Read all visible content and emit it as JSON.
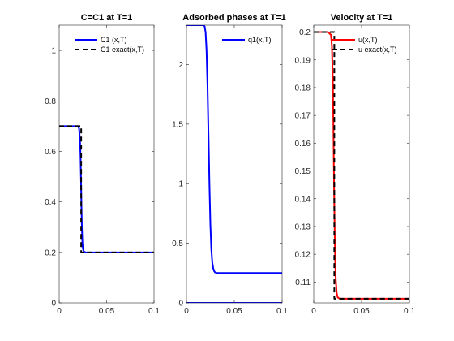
{
  "chart_data": [
    {
      "type": "line",
      "title": "C=C1 at T=1",
      "xlim": [
        0,
        0.1
      ],
      "ylim": [
        0,
        1.1
      ],
      "xticks": [
        0,
        0.05,
        0.1
      ],
      "xtick_labels": [
        "0",
        "0.05",
        "0.1"
      ],
      "yticks": [
        0,
        0.2,
        0.4,
        0.6,
        0.8,
        1
      ],
      "ytick_labels": [
        "0",
        "0.2",
        "0.4",
        "0.6",
        "0.8",
        "1"
      ],
      "grid": false,
      "legend_position": "top-right",
      "series": [
        {
          "name": "C1 (x,T)",
          "color": "#0000ff",
          "style": "solid",
          "x": [
            0,
            0.01,
            0.02,
            0.021,
            0.022,
            0.0225,
            0.023,
            0.0235,
            0.024,
            0.0245,
            0.025,
            0.026,
            0.028,
            0.03,
            0.05,
            0.1
          ],
          "y": [
            0.7,
            0.7,
            0.7,
            0.69,
            0.64,
            0.58,
            0.49,
            0.38,
            0.29,
            0.24,
            0.215,
            0.203,
            0.2,
            0.2,
            0.2,
            0.2
          ]
        },
        {
          "name": "C1 exact(x,T)",
          "color": "#000000",
          "style": "dashed",
          "x": [
            0,
            0.0232,
            0.0232,
            0.1
          ],
          "y": [
            0.7,
            0.7,
            0.2,
            0.2
          ]
        }
      ]
    },
    {
      "type": "line",
      "title": "Adsorbed phases at T=1",
      "xlim": [
        0,
        0.1
      ],
      "ylim": [
        0,
        2.33
      ],
      "xticks": [
        0,
        0.05,
        0.1
      ],
      "xtick_labels": [
        "0",
        "0.05",
        "0.1"
      ],
      "yticks": [
        0,
        0.5,
        1,
        1.5,
        2
      ],
      "ytick_labels": [
        "0",
        "0.5",
        "1",
        "1.5",
        "2"
      ],
      "grid": false,
      "legend_position": "top-right",
      "series": [
        {
          "name": "q1(x,T)",
          "color": "#0000ff",
          "style": "solid",
          "x": [
            0,
            0.018,
            0.019,
            0.02,
            0.021,
            0.022,
            0.023,
            0.024,
            0.025,
            0.026,
            0.027,
            0.028,
            0.029,
            0.03,
            0.032,
            0.035,
            0.1
          ],
          "y": [
            2.33,
            2.33,
            2.32,
            2.27,
            2.12,
            1.82,
            1.42,
            1.0,
            0.66,
            0.45,
            0.34,
            0.29,
            0.265,
            0.255,
            0.25,
            0.25,
            0.25
          ]
        },
        {
          "color": "#0000ff",
          "style": "solid",
          "x": [
            0,
            0.1
          ],
          "y": [
            0,
            0
          ]
        }
      ]
    },
    {
      "type": "line",
      "title": "Velocity at T=1",
      "xlim": [
        0,
        0.1
      ],
      "ylim": [
        0.1025,
        0.2025
      ],
      "xticks": [
        0,
        0.05,
        0.1
      ],
      "xtick_labels": [
        "0",
        "0.05",
        "0.1"
      ],
      "yticks": [
        0.11,
        0.12,
        0.13,
        0.14,
        0.15,
        0.16,
        0.17,
        0.18,
        0.19,
        0.2
      ],
      "ytick_labels": [
        "0.11",
        "0.12",
        "0.13",
        "0.14",
        "0.15",
        "0.16",
        "0.17",
        "0.18",
        "0.19",
        "0.2"
      ],
      "grid": false,
      "legend_position": "top-right",
      "series": [
        {
          "name": "u(x,T)",
          "color": "#ff0000",
          "style": "solid",
          "x": [
            0,
            0.015,
            0.018,
            0.019,
            0.02,
            0.0205,
            0.021,
            0.0215,
            0.022,
            0.0225,
            0.023,
            0.024,
            0.025,
            0.027,
            0.03,
            0.1
          ],
          "y": [
            0.2,
            0.2,
            0.199,
            0.195,
            0.182,
            0.168,
            0.152,
            0.138,
            0.126,
            0.117,
            0.111,
            0.106,
            0.1045,
            0.104,
            0.104,
            0.104
          ]
        },
        {
          "name": "u exact(x,T)",
          "color": "#000000",
          "style": "dashed",
          "x": [
            0,
            0.0215,
            0.0215,
            0.1
          ],
          "y": [
            0.2,
            0.2,
            0.104,
            0.104
          ]
        }
      ]
    }
  ]
}
